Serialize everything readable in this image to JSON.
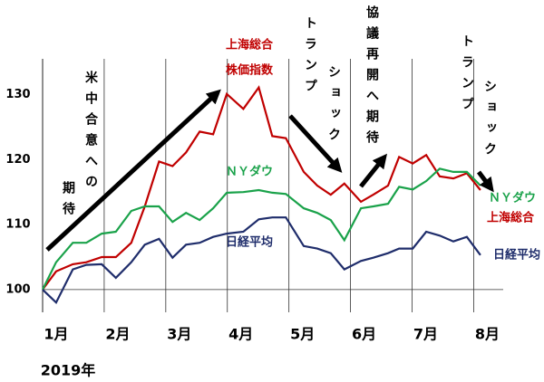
{
  "chart_data": {
    "type": "line",
    "x": [
      1.0,
      1.22,
      1.49,
      1.71,
      1.96,
      2.19,
      2.44,
      2.66,
      2.89,
      3.11,
      3.33,
      3.55,
      3.77,
      3.99,
      4.26,
      4.51,
      4.73,
      4.95,
      5.24,
      5.46,
      5.68,
      5.9,
      6.17,
      6.37,
      6.61,
      6.79,
      7.01,
      7.23,
      7.45,
      7.67,
      7.89,
      8.11
    ],
    "series": [
      {
        "name": "上海総合",
        "color": "#c00000",
        "values": [
          100,
          102.8,
          103.9,
          104.2,
          105,
          105,
          107.2,
          112.8,
          119.7,
          119,
          121.1,
          124.3,
          123.9,
          130.1,
          127.8,
          131.1,
          123.6,
          123.3,
          118.1,
          116,
          114.6,
          116.3,
          113.5,
          114.6,
          116,
          120.4,
          119.4,
          120.7,
          117.4,
          117.1,
          117.9,
          115.3
        ]
      },
      {
        "name": "ＮＹダウ",
        "color": "#1aa24a",
        "values": [
          100,
          104.2,
          107.2,
          107.2,
          108.6,
          108.9,
          112.1,
          112.8,
          112.8,
          110.4,
          111.8,
          110.7,
          112.5,
          114.9,
          115,
          115.3,
          114.9,
          114.7,
          112.5,
          111.8,
          110.7,
          107.6,
          112.5,
          112.8,
          113.2,
          115.8,
          115.4,
          116.7,
          118.6,
          118.1,
          118.1,
          116
        ]
      },
      {
        "name": "日経平均",
        "color": "#1f2d6b",
        "values": [
          100,
          98,
          103.1,
          103.8,
          103.9,
          101.8,
          104.2,
          106.9,
          107.8,
          104.9,
          106.9,
          107.2,
          108.1,
          108.6,
          108.9,
          110.8,
          111.1,
          111.1,
          106.7,
          106.3,
          105.6,
          103.1,
          104.4,
          104.9,
          105.6,
          106.3,
          106.3,
          108.9,
          108.3,
          107.4,
          108.1,
          105.3
        ]
      }
    ],
    "inline_labels": [
      {
        "lines": [
          "上海総合",
          "株価指数"
        ]
      },
      {
        "lines": [
          "ＮＹダウ"
        ]
      },
      {
        "lines": [
          "日経平均"
        ]
      }
    ],
    "annotations": [
      {
        "lines": [
          "米中合意への",
          "期待"
        ]
      },
      {
        "lines": [
          "トランプ",
          "ショック"
        ]
      },
      {
        "lines": [
          "協議再開へ期待"
        ]
      },
      {
        "lines": [
          "トランプ",
          "ショック"
        ]
      }
    ],
    "xlabel": "2019年",
    "xlim": [
      1,
      8.48
    ],
    "xticks": [
      {
        "value": 1,
        "label": "1月"
      },
      {
        "value": 2,
        "label": "2月"
      },
      {
        "value": 3,
        "label": "3月"
      },
      {
        "value": 4,
        "label": "4月"
      },
      {
        "value": 5,
        "label": "5月"
      },
      {
        "value": 6,
        "label": "6月"
      },
      {
        "value": 7,
        "label": "7月"
      },
      {
        "value": 8,
        "label": "8月"
      }
    ],
    "ylim": [
      96.5,
      135.5
    ],
    "yticks": [
      100,
      110,
      120,
      130
    ],
    "grid": true
  }
}
